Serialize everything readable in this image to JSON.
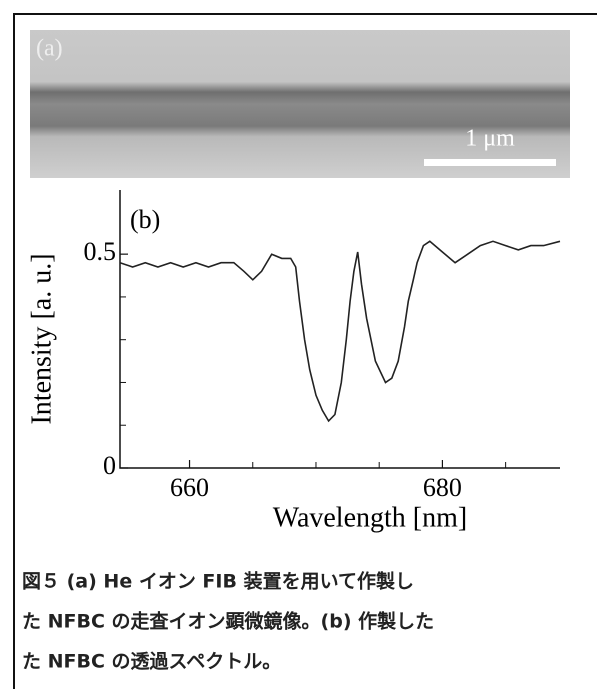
{
  "image": {
    "panel_label": "(a)",
    "scale_bar_label": "1 μm"
  },
  "chart_data": {
    "type": "line",
    "panel_label": "(b)",
    "x_label": "Wavelength [nm]",
    "y_label": "Intensity [a. u.]",
    "xlim": [
      654.5,
      689.3
    ],
    "ylim": [
      0,
      0.65
    ],
    "xticks": [
      660,
      680
    ],
    "yticks": [
      0,
      0.5
    ],
    "xminor": [
      665,
      670,
      675,
      685
    ],
    "yminor": [
      0.1,
      0.2,
      0.3,
      0.4
    ],
    "color": "#222222",
    "x": [
      654.5,
      655.5,
      656.5,
      657.5,
      658.5,
      659.5,
      660.5,
      661.5,
      662.5,
      663.5,
      664.3,
      665,
      665.7,
      666.5,
      667.3,
      668,
      668.4,
      668.7,
      669.1,
      669.5,
      670,
      670.5,
      671,
      671.5,
      672,
      672.4,
      672.7,
      673,
      673.3,
      673.6,
      674,
      674.7,
      675.5,
      676,
      676.5,
      677,
      677.3,
      677.7,
      678,
      678.5,
      679,
      680,
      681,
      682,
      683,
      684,
      685,
      686,
      687,
      688,
      689.3
    ],
    "values": [
      0.48,
      0.47,
      0.48,
      0.47,
      0.48,
      0.47,
      0.48,
      0.47,
      0.48,
      0.48,
      0.46,
      0.44,
      0.46,
      0.5,
      0.49,
      0.49,
      0.47,
      0.39,
      0.3,
      0.23,
      0.17,
      0.135,
      0.11,
      0.125,
      0.2,
      0.3,
      0.39,
      0.46,
      0.505,
      0.43,
      0.35,
      0.25,
      0.2,
      0.21,
      0.25,
      0.33,
      0.39,
      0.44,
      0.48,
      0.52,
      0.53,
      0.505,
      0.48,
      0.5,
      0.52,
      0.53,
      0.52,
      0.51,
      0.52,
      0.52,
      0.53
    ]
  },
  "caption": [
    "図５ (a) He イオン FIB 装置を用いて作製し",
    "た NFBC の走査イオン顕微鏡像。(b) 作製した",
    "た NFBC の透過スペクトル。"
  ]
}
